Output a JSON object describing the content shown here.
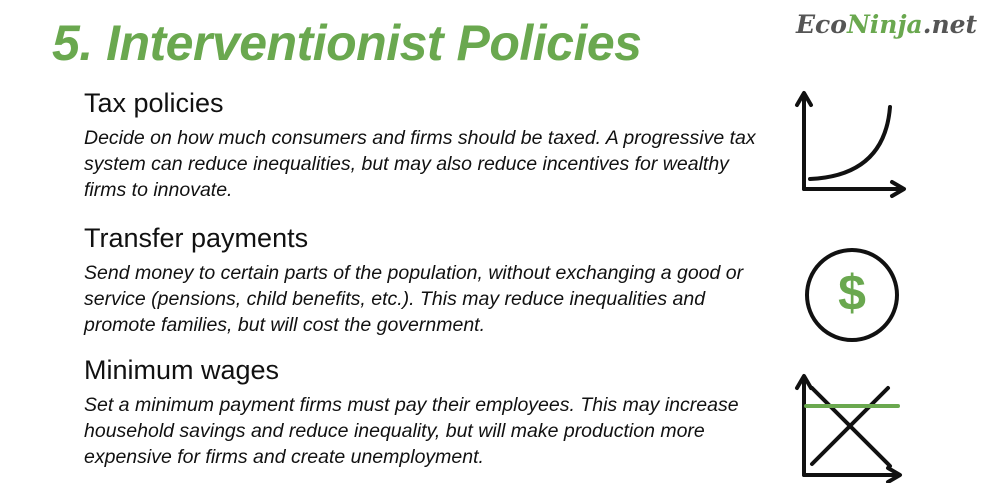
{
  "header": {
    "title": "5. Interventionist Policies",
    "logo_part1": "Eco",
    "logo_part2": "Ninja",
    "logo_part3": ".net"
  },
  "sections": [
    {
      "heading": "Tax policies",
      "body": "Decide on how much consumers and firms should be taxed. A progressive tax system can reduce inequalities, but may also reduce incentives for wealthy firms to innovate.",
      "icon": "exponential-curve-graph-icon"
    },
    {
      "heading": "Transfer payments",
      "body": "Send money to certain parts of the population, without exchanging a good or service (pensions, child benefits, etc.). This may reduce inequalities and promote families, but will cost the government.",
      "icon": "dollar-coin-icon",
      "symbol": "$"
    },
    {
      "heading": "Minimum wages",
      "body": "Set a minimum payment firms must pay their employees. This may increase household savings and reduce inequality, but will make production more expensive for firms and create unemployment.",
      "icon": "supply-demand-price-floor-icon"
    }
  ],
  "colors": {
    "accent": "#6aa84f",
    "text": "#111111",
    "logo_dark": "#555555"
  }
}
